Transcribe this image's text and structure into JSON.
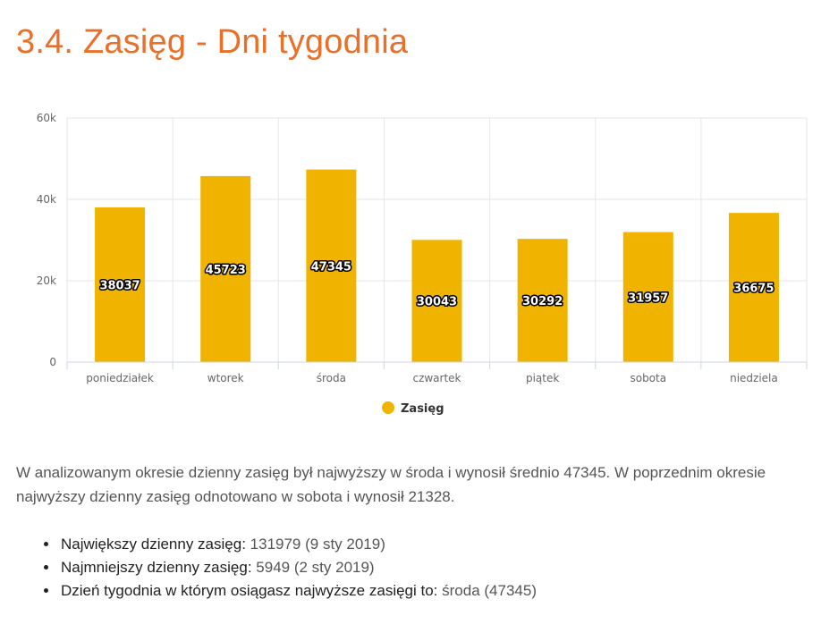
{
  "page": {
    "title": "3.4. Zasięg - Dni tygodnia"
  },
  "chart_data": {
    "type": "bar",
    "categories": [
      "poniedziałek",
      "wtorek",
      "środa",
      "czwartek",
      "piątek",
      "sobota",
      "niedziela"
    ],
    "series": [
      {
        "name": "Zasięg",
        "values": [
          38037,
          45723,
          47345,
          30043,
          30292,
          31957,
          36675
        ]
      }
    ],
    "ylim": [
      0,
      60000
    ],
    "yticks": [
      0,
      20000,
      40000,
      60000
    ],
    "ytick_labels": [
      "0",
      "20k",
      "40k",
      "60k"
    ],
    "data_labels": true,
    "grid": true,
    "legend_position": "bottom-center",
    "colors": {
      "bar": "#efb300",
      "grid": "#e6e6e6",
      "axis": "#ccd6eb"
    }
  },
  "summary": {
    "text": "W analizowanym okresie dzienny zasięg był najwyższy w środa i wynosił średnio 47345. W poprzednim okresie najwyższy dzienny zasięg odnotowano w sobota i wynosił 21328."
  },
  "stats": [
    {
      "label": "Największy dzienny zasięg:",
      "value": "131979 (9 sty 2019)"
    },
    {
      "label": "Najmniejszy dzienny zasięg:",
      "value": "5949 (2 sty 2019)"
    },
    {
      "label": "Dzień tygodnia w którym osiągasz najwyższe zasięgi to:",
      "value": "środa (47345)"
    }
  ]
}
